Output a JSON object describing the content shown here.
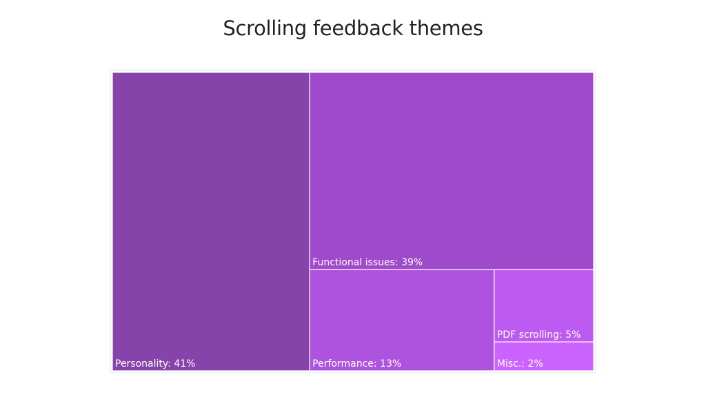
{
  "chart_data": {
    "type": "treemap",
    "title": "Scrolling feedback themes",
    "items": [
      {
        "name": "Personality",
        "value": 41,
        "label": "Personality: 41%",
        "color": "#8643AA"
      },
      {
        "name": "Functional issues",
        "value": 39,
        "label": "Functional issues: 39%",
        "color": "#9E4ACB"
      },
      {
        "name": "Performance",
        "value": 13,
        "label": "Performance: 13%",
        "color": "#AE52E0"
      },
      {
        "name": "PDF scrolling",
        "value": 5,
        "label": "PDF scrolling: 5%",
        "color": "#BD5AF2"
      },
      {
        "name": "Misc.",
        "value": 2,
        "label": "Misc.: 2%",
        "color": "#CB64FF"
      }
    ],
    "value_unit": "%"
  }
}
